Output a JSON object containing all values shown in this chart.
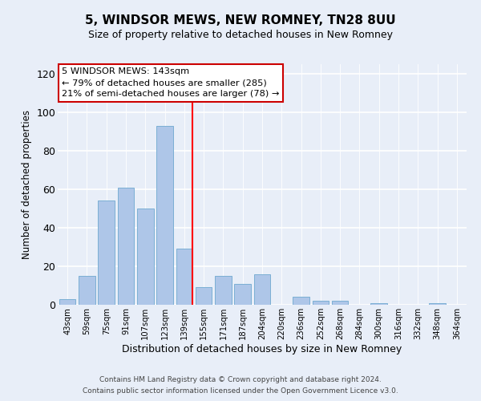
{
  "title": "5, WINDSOR MEWS, NEW ROMNEY, TN28 8UU",
  "subtitle": "Size of property relative to detached houses in New Romney",
  "xlabel": "Distribution of detached houses by size in New Romney",
  "ylabel": "Number of detached properties",
  "categories": [
    "43sqm",
    "59sqm",
    "75sqm",
    "91sqm",
    "107sqm",
    "123sqm",
    "139sqm",
    "155sqm",
    "171sqm",
    "187sqm",
    "204sqm",
    "220sqm",
    "236sqm",
    "252sqm",
    "268sqm",
    "284sqm",
    "300sqm",
    "316sqm",
    "332sqm",
    "348sqm",
    "364sqm"
  ],
  "values": [
    3,
    15,
    54,
    61,
    50,
    93,
    29,
    9,
    15,
    11,
    16,
    0,
    4,
    2,
    2,
    0,
    1,
    0,
    0,
    1,
    0
  ],
  "bar_color": "#aec6e8",
  "bar_edge_color": "#7bafd4",
  "marker_line_index": 6,
  "annotation_lines": [
    "5 WINDSOR MEWS: 143sqm",
    "← 79% of detached houses are smaller (285)",
    "21% of semi-detached houses are larger (78) →"
  ],
  "annotation_box_color": "#ffffff",
  "annotation_box_edge_color": "#cc0000",
  "ylim": [
    0,
    125
  ],
  "yticks": [
    0,
    20,
    40,
    60,
    80,
    100,
    120
  ],
  "footnote1": "Contains HM Land Registry data © Crown copyright and database right 2024.",
  "footnote2": "Contains public sector information licensed under the Open Government Licence v3.0.",
  "bg_color": "#e8eef8"
}
